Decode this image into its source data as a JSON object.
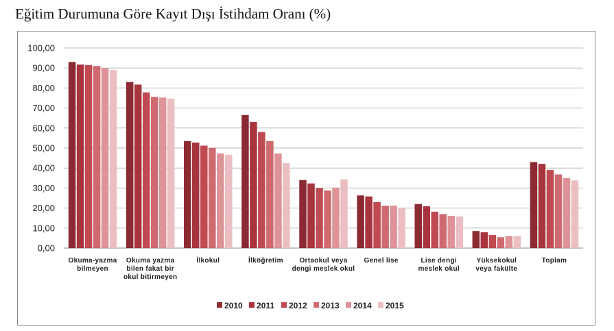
{
  "title": "Eğitim Durumuna Göre Kayıt Dışı İstihdam Oranı (%)",
  "chart_data": {
    "type": "bar",
    "title": "Eğitim Durumuna Göre Kayıt Dışı İstihdam Oranı (%)",
    "xlabel": "",
    "ylabel": "",
    "ylim": [
      0,
      100
    ],
    "yticks": [
      "0,00",
      "10,00",
      "20,00",
      "30,00",
      "40,00",
      "50,00",
      "60,00",
      "70,00",
      "80,00",
      "90,00",
      "100,00"
    ],
    "grid": true,
    "legend_position": "bottom",
    "categories": [
      [
        "Okuma-yazma",
        "bilmeyen"
      ],
      [
        "Okuma yazma",
        "bilen fakat bir",
        "okul bitirmeyen"
      ],
      [
        "İlkokul"
      ],
      [
        "İlköğretim"
      ],
      [
        "Ortaokul veya",
        "dengi meslek okul"
      ],
      [
        "Genel lise"
      ],
      [
        "Lise dengi",
        "meslek okul"
      ],
      [
        "Yüksekokul",
        "veya fakülte"
      ],
      [
        "Toplam"
      ]
    ],
    "series": [
      {
        "name": "2010",
        "color": "#8b2a33",
        "values": [
          93.0,
          83.0,
          53.5,
          66.5,
          34.0,
          26.3,
          22.0,
          8.5,
          43.0
        ]
      },
      {
        "name": "2011",
        "color": "#a8343d",
        "values": [
          91.7,
          81.7,
          52.7,
          63.0,
          32.3,
          25.8,
          20.9,
          7.9,
          42.1
        ]
      },
      {
        "name": "2012",
        "color": "#bf4a52",
        "values": [
          91.5,
          77.8,
          51.2,
          58.0,
          30.0,
          23.0,
          18.2,
          6.5,
          39.0
        ]
      },
      {
        "name": "2013",
        "color": "#cf6a70",
        "values": [
          91.0,
          75.5,
          50.1,
          53.5,
          28.8,
          21.2,
          17.0,
          5.4,
          36.8
        ]
      },
      {
        "name": "2014",
        "color": "#dd9397",
        "values": [
          90.0,
          75.2,
          47.3,
          47.3,
          30.2,
          21.2,
          16.1,
          6.1,
          35.0
        ]
      },
      {
        "name": "2015",
        "color": "#ebbfc1",
        "values": [
          89.0,
          74.7,
          46.6,
          42.5,
          34.4,
          20.1,
          15.8,
          6.1,
          33.8
        ]
      }
    ]
  }
}
